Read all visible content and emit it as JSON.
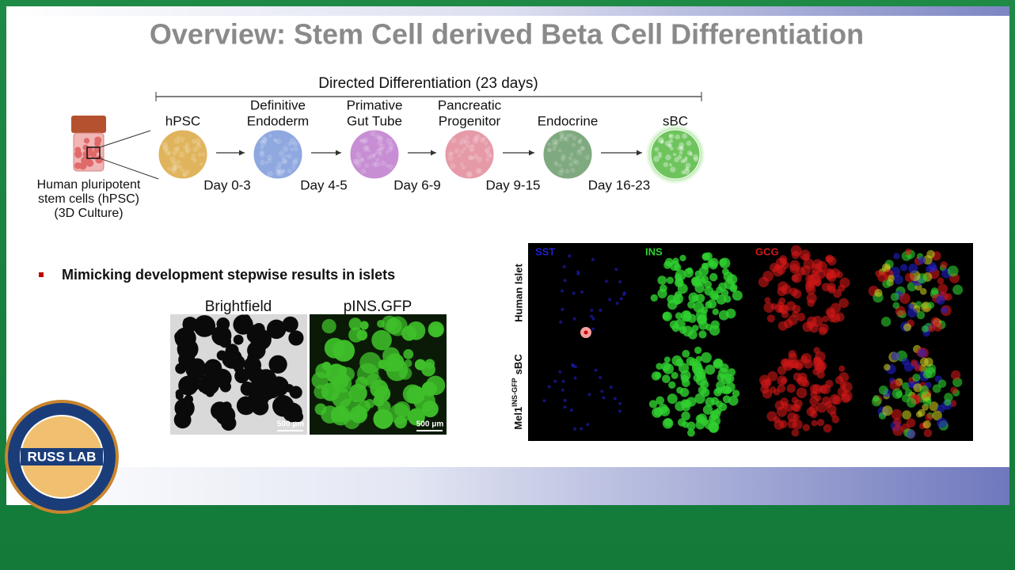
{
  "title": "Overview: Stem Cell derived Beta Cell Differentiation",
  "timeline": {
    "label": "Directed Differentiation (23 days)",
    "stages": [
      {
        "lines": [
          "hPSC"
        ]
      },
      {
        "lines": [
          "Definitive",
          "Endoderm"
        ]
      },
      {
        "lines": [
          "Primative",
          "Gut Tube"
        ]
      },
      {
        "lines": [
          "Pancreatic",
          "Progenitor"
        ]
      },
      {
        "lines": [
          "Endocrine"
        ]
      },
      {
        "lines": [
          "sBC"
        ]
      }
    ],
    "days": [
      "Day 0-3",
      "Day 4-5",
      "Day 6-9",
      "Day 9-15",
      "Day 16-23"
    ]
  },
  "source": {
    "lines": [
      "Human pluripotent",
      "stem cells (hPSC)",
      "(3D Culture)"
    ]
  },
  "bullet": "Mimicking development stepwise results in islets",
  "images": [
    {
      "label": "Brightfield",
      "scale": "500 μm"
    },
    {
      "label": "pINS.GFP",
      "scale": "500 μm"
    }
  ],
  "panel": {
    "columns": [
      "SST",
      "INS",
      "GCG"
    ],
    "rows": [
      {
        "label": "Human Islet"
      },
      {
        "label": "Mel1",
        "sup": "INS-GFP",
        "suffix": "sBC"
      }
    ]
  },
  "logo": {
    "name": "RUSS LAB"
  }
}
